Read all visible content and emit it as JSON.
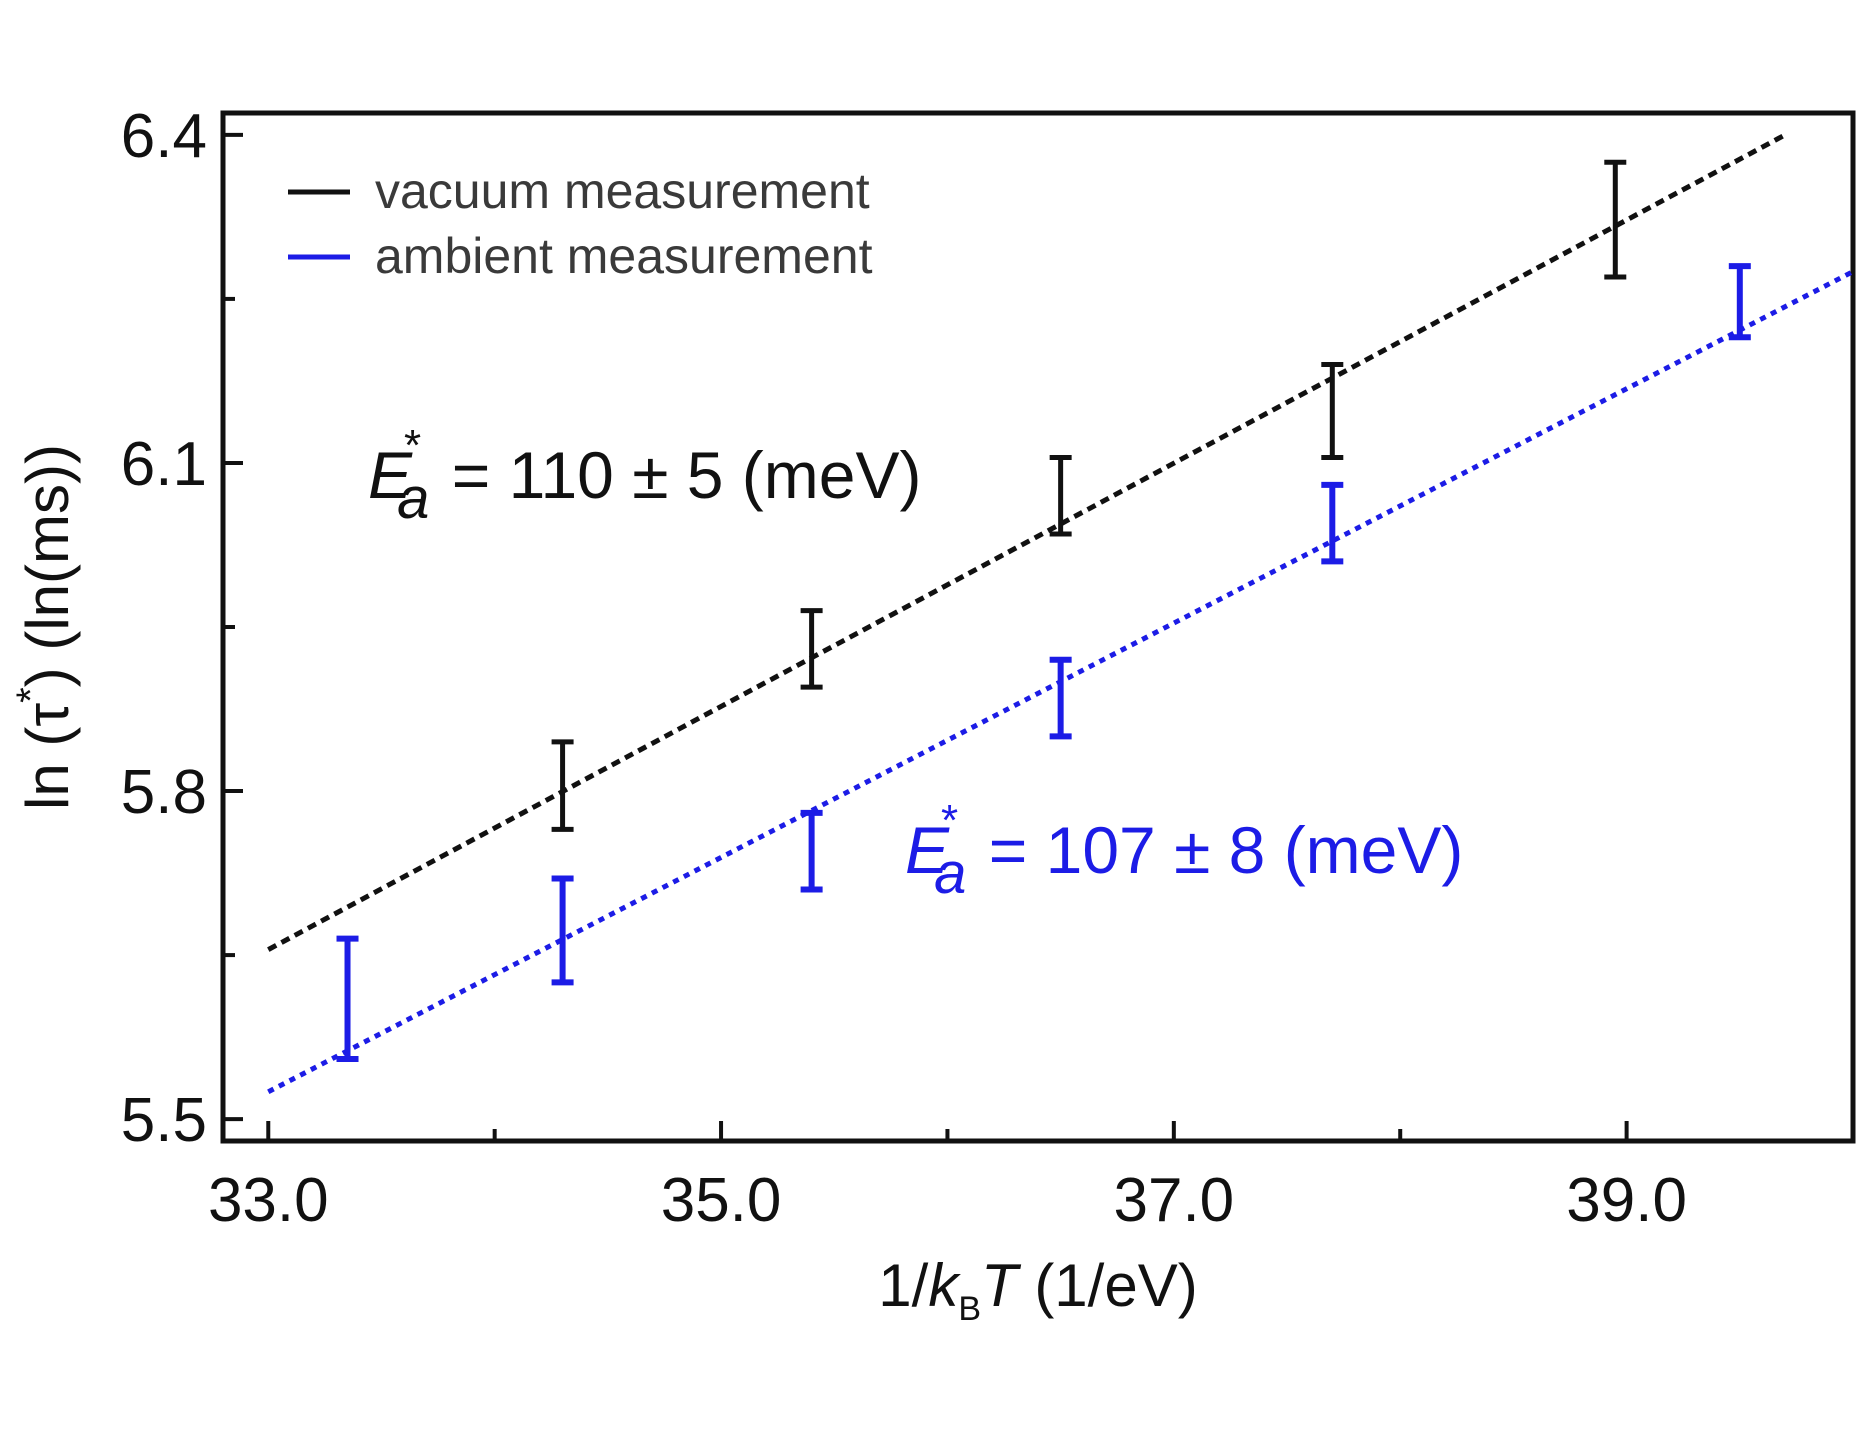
{
  "chart_data": {
    "type": "scatter",
    "title": "",
    "xlabel": {
      "prefix": "1/",
      "k": "k",
      "sub": "B",
      "T": "T",
      "unit": " (1/eV)"
    },
    "ylabel": {
      "prefix": "ln (",
      "tau": "τ",
      "star": "*",
      "suffix": ") (ln(ms))"
    },
    "xlim": [
      32.8,
      40.0
    ],
    "ylim": [
      5.48,
      6.42
    ],
    "xticks": [
      33.0,
      35.0,
      37.0,
      39.0
    ],
    "xtick_labels": [
      "33.0",
      "35.0",
      "37.0",
      "39.0"
    ],
    "xticks_minor": [
      34.0,
      36.0,
      38.0
    ],
    "yticks": [
      5.5,
      5.8,
      6.1,
      6.4
    ],
    "ytick_labels": [
      "5.5",
      "5.8",
      "6.1",
      "6.4"
    ],
    "yticks_minor": [
      5.65,
      5.95,
      6.25
    ],
    "grid": false,
    "legend_position": "top-left",
    "series": [
      {
        "name": "vacuum measurement",
        "color": "#111111",
        "x": [
          34.3,
          35.4,
          36.5,
          37.7,
          38.95
        ],
        "y": [
          5.8,
          5.93,
          6.07,
          6.145,
          6.32
        ],
        "yerr_low": [
          5.765,
          5.895,
          6.035,
          6.105,
          6.27
        ],
        "yerr_high": [
          5.845,
          5.965,
          6.105,
          6.19,
          6.375
        ],
        "fit": {
          "x": [
            33.0,
            39.7
          ],
          "y": [
            5.655,
            6.4
          ]
        }
      },
      {
        "name": "ambient measurement",
        "color": "#1c1ce6",
        "x": [
          33.35,
          34.3,
          35.4,
          36.5,
          37.7,
          39.5
        ],
        "y": [
          5.61,
          5.67,
          5.745,
          5.885,
          6.045,
          6.245
        ],
        "yerr_low": [
          5.555,
          5.625,
          5.71,
          5.85,
          6.01,
          6.215
        ],
        "yerr_high": [
          5.665,
          5.72,
          5.78,
          5.92,
          6.08,
          6.28
        ],
        "fit": {
          "x": [
            33.0,
            40.0
          ],
          "y": [
            5.525,
            6.275
          ]
        }
      }
    ],
    "annotations": [
      {
        "E": "E",
        "sub": "a",
        "sup": "*",
        "text": " = 110 ± 5 (meV)",
        "color": "#111111"
      },
      {
        "E": "E",
        "sub": "a",
        "sup": "*",
        "text": " = 107 ± 8 (meV)",
        "color": "#1c1ce6"
      }
    ]
  }
}
